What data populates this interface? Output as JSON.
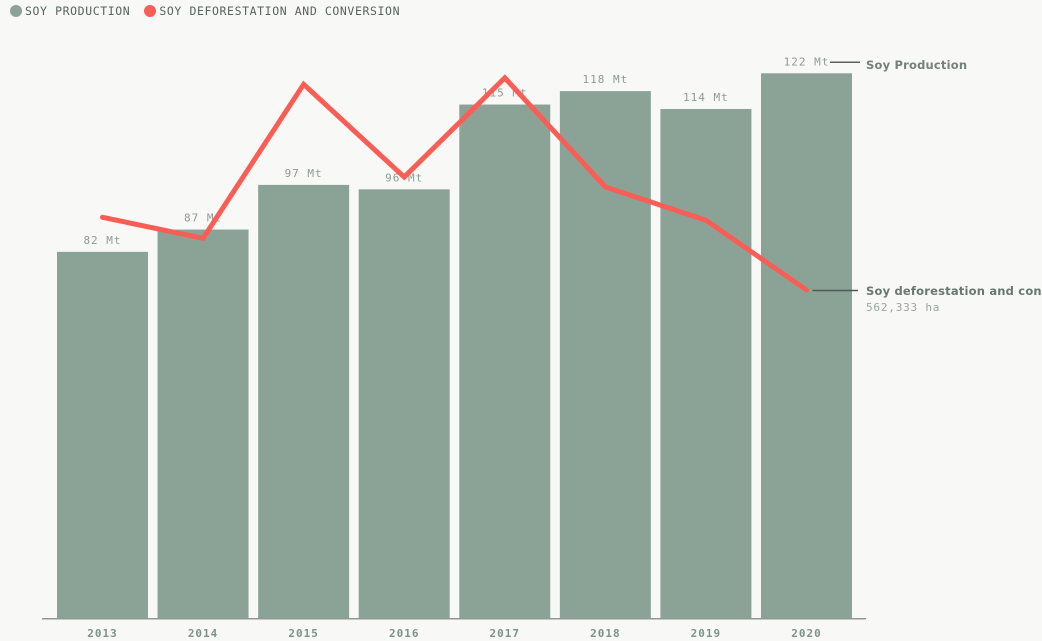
{
  "legend": {
    "items": [
      {
        "label": "SOY PRODUCTION",
        "color": "#8ba397"
      },
      {
        "label": "SOY DEFORESTATION AND CONVERSION",
        "color": "#f85e55"
      }
    ]
  },
  "annotations": {
    "production_label": "Soy Production",
    "deforestation_label": "Soy deforestation and conversion",
    "deforestation_value": "562,333 ha"
  },
  "colors": {
    "background": "#f8f8f7",
    "bar": "#8ba397",
    "line": "#f85e55",
    "axis": "#8f9894",
    "bar_label_text": "#8b9c94",
    "year_label_text": "#7d9289",
    "connector_production": "#5a625e",
    "connector_deforestation": "#52585a"
  },
  "chart_data": {
    "type": "bar",
    "categories": [
      "2013",
      "2014",
      "2015",
      "2016",
      "2017",
      "2018",
      "2019",
      "2020"
    ],
    "series": [
      {
        "name": "Soy Production",
        "render": "bar",
        "unit": "Mt",
        "label_suffix": " Mt",
        "values": [
          82,
          87,
          97,
          96,
          115,
          118,
          114,
          122
        ],
        "data_labels": [
          "82 Mt",
          "87 Mt",
          "97 Mt",
          "96 Mt",
          "115 Mt",
          "118 Mt",
          "114 Mt",
          "122 Mt"
        ]
      },
      {
        "name": "Soy deforestation and conversion",
        "render": "line",
        "unit": "ha",
        "values_estimated": [
          687000,
          651000,
          915000,
          756000,
          926000,
          739000,
          682000,
          562333
        ],
        "labeled_point": {
          "category": "2020",
          "value": 562333,
          "label": "562,333 ha"
        }
      }
    ],
    "title": "",
    "xlabel": "",
    "ylabel": "",
    "grid": false,
    "legend_position": "top-left",
    "bar_axis_origin": 0
  }
}
